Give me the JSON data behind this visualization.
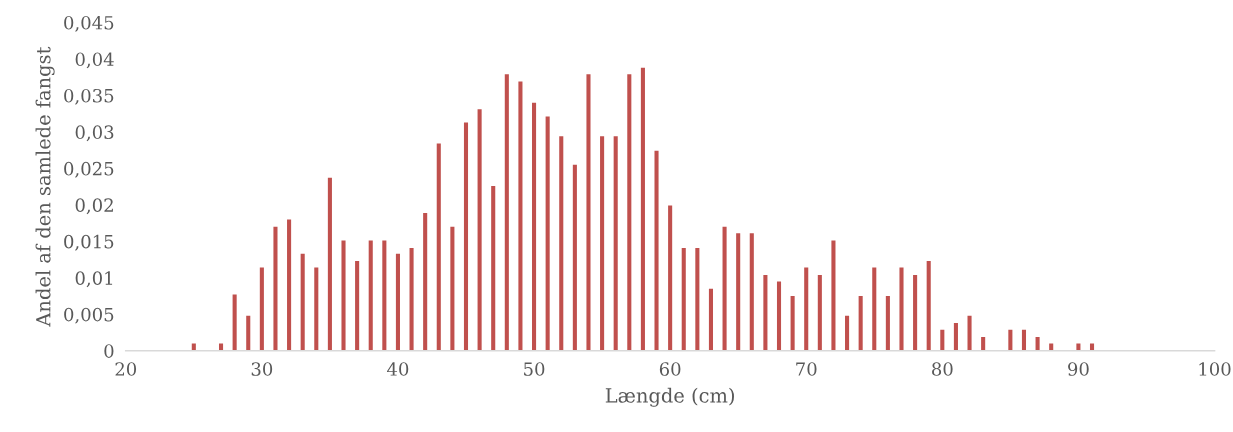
{
  "chart_data": {
    "type": "bar",
    "xlabel": "Længde (cm)",
    "ylabel": "Andel af den samlede fangst",
    "x": [
      25,
      27,
      28,
      29,
      30,
      31,
      32,
      33,
      34,
      35,
      36,
      37,
      38,
      39,
      40,
      41,
      42,
      43,
      44,
      45,
      46,
      47,
      48,
      49,
      50,
      51,
      52,
      53,
      54,
      55,
      56,
      57,
      58,
      59,
      60,
      61,
      62,
      63,
      64,
      65,
      66,
      67,
      68,
      69,
      70,
      71,
      72,
      73,
      74,
      75,
      76,
      77,
      78,
      79,
      80,
      81,
      82,
      83,
      85,
      86,
      87,
      88,
      90,
      91
    ],
    "values": [
      0.001,
      0.001,
      0.0077,
      0.0048,
      0.0114,
      0.017,
      0.018,
      0.0133,
      0.0114,
      0.0237,
      0.0151,
      0.0123,
      0.0151,
      0.0151,
      0.0133,
      0.0141,
      0.0189,
      0.0284,
      0.017,
      0.0313,
      0.0331,
      0.0226,
      0.0379,
      0.0369,
      0.034,
      0.0321,
      0.0294,
      0.0255,
      0.0379,
      0.0294,
      0.0294,
      0.0379,
      0.0388,
      0.0274,
      0.0199,
      0.0141,
      0.0141,
      0.0085,
      0.017,
      0.0161,
      0.0161,
      0.0104,
      0.0095,
      0.0075,
      0.0114,
      0.0104,
      0.0151,
      0.0048,
      0.0075,
      0.0114,
      0.0075,
      0.0114,
      0.0104,
      0.0123,
      0.0029,
      0.0038,
      0.0048,
      0.0019,
      0.0029,
      0.0029,
      0.0019,
      0.001,
      0.001,
      0.001
    ],
    "color": "#c0504d",
    "xlim": [
      20,
      100
    ],
    "xticks": [
      20,
      30,
      40,
      50,
      60,
      70,
      80,
      90,
      100
    ],
    "ylim": [
      0,
      0.045
    ],
    "yticks": [
      0,
      {
        "value": 0.005,
        "label": "0,005"
      },
      {
        "value": 0.01,
        "label": "0,01"
      },
      {
        "value": 0.015,
        "label": "0,015"
      },
      {
        "value": 0.02,
        "label": "0,02"
      },
      {
        "value": 0.025,
        "label": "0,025"
      },
      {
        "value": 0.03,
        "label": "0,03"
      },
      {
        "value": 0.035,
        "label": "0,035"
      },
      {
        "value": 0.04,
        "label": "0,04"
      },
      {
        "value": 0.045,
        "label": "0,045"
      }
    ],
    "grid": false,
    "legend": false
  }
}
